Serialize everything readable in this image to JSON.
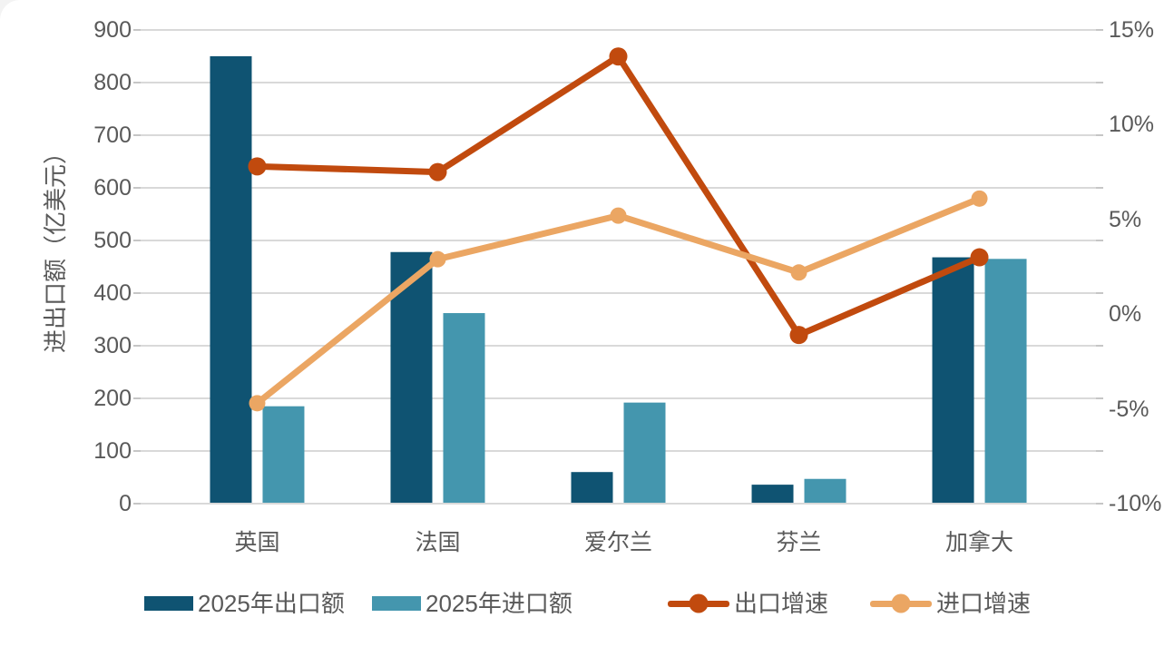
{
  "chart_data": {
    "type": "bar+line",
    "categories": [
      "英国",
      "法国",
      "爱尔兰",
      "芬兰",
      "加拿大"
    ],
    "bar_series": [
      {
        "name": "2025年出口额",
        "color": "#0f5372",
        "axis": "left",
        "values": [
          850,
          478,
          60,
          36,
          468
        ]
      },
      {
        "name": "2025年进口额",
        "color": "#4496ae",
        "axis": "left",
        "values": [
          185,
          362,
          192,
          47,
          465
        ]
      }
    ],
    "line_series": [
      {
        "name": "出口增速",
        "color": "#c14a0e",
        "axis": "right",
        "unit": "%",
        "values": [
          7.8,
          7.5,
          13.6,
          -1.1,
          3.0
        ]
      },
      {
        "name": "进口增速",
        "color": "#eba663",
        "axis": "right",
        "unit": "%",
        "values": [
          -4.7,
          2.9,
          5.2,
          2.2,
          6.1
        ]
      }
    ],
    "left_axis": {
      "title": "进出口额（亿美元）",
      "min": 0,
      "max": 900,
      "step": 100,
      "tick_labels": [
        "900",
        "800",
        "700",
        "600",
        "500",
        "400",
        "300",
        "200",
        "100",
        "0"
      ]
    },
    "right_axis": {
      "min": -10,
      "max": 15,
      "step": 5,
      "tick_labels": [
        "15%",
        "10%",
        "5%",
        "0%",
        "-5%",
        "-10%"
      ]
    },
    "grid": true,
    "legend_position": "bottom",
    "styles": {
      "gridline_color": "#d9d9d9",
      "tick_color": "#c6c6c6",
      "axis_line_color": "#d9d9d9",
      "text_color": "#595959",
      "background": "#ffffff"
    }
  }
}
